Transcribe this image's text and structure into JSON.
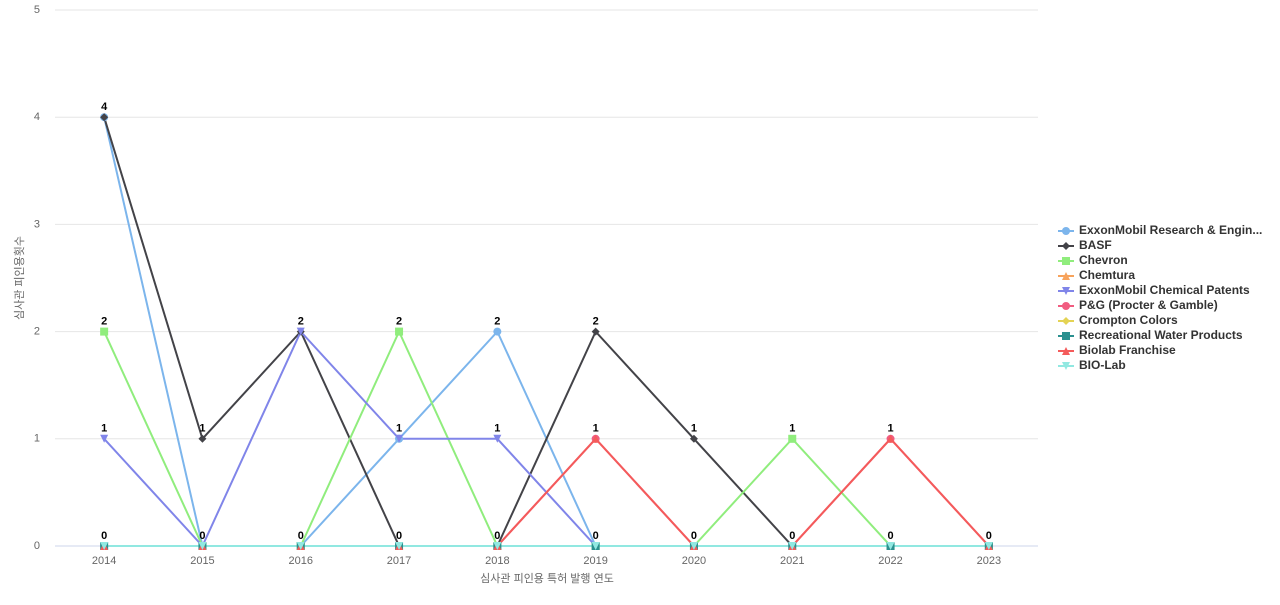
{
  "chart_data": {
    "type": "line",
    "x_label": "심사관 피인용 특허 발행 연도",
    "y_label": "심사관 피인용횟수",
    "categories": [
      "2014",
      "2015",
      "2016",
      "2017",
      "2018",
      "2019",
      "2020",
      "2021",
      "2022",
      "2023"
    ],
    "ylim": [
      0,
      5
    ],
    "yticks": [
      0,
      1,
      2,
      3,
      4,
      5
    ],
    "grid": true,
    "legend": "right",
    "series": [
      {
        "name": "ExxonMobil Research & Engin...",
        "color": "#7cb5ec",
        "marker": "circle",
        "values": [
          4,
          0,
          0,
          1,
          2,
          0,
          0,
          0,
          0,
          0
        ]
      },
      {
        "name": "BASF",
        "color": "#434348",
        "marker": "diamond",
        "values": [
          4,
          1,
          2,
          0,
          0,
          2,
          1,
          0,
          0,
          0
        ]
      },
      {
        "name": "Chevron",
        "color": "#90ed7d",
        "marker": "square",
        "values": [
          2,
          0,
          0,
          2,
          0,
          0,
          0,
          1,
          0,
          0
        ]
      },
      {
        "name": "Chemtura",
        "color": "#f7a35c",
        "marker": "triangle",
        "values": [
          0,
          0,
          0,
          0,
          0,
          0,
          0,
          0,
          0,
          0
        ]
      },
      {
        "name": "ExxonMobil Chemical Patents",
        "color": "#8085e9",
        "marker": "triangle-down",
        "values": [
          1,
          0,
          2,
          1,
          1,
          0,
          0,
          0,
          0,
          0
        ]
      },
      {
        "name": "P&G (Procter & Gamble)",
        "color": "#f15c80",
        "marker": "circle",
        "values": [
          0,
          0,
          0,
          0,
          0,
          1,
          0,
          0,
          1,
          0
        ]
      },
      {
        "name": "Crompton Colors",
        "color": "#e4d354",
        "marker": "diamond",
        "values": [
          0,
          0,
          0,
          0,
          0,
          0,
          0,
          0,
          0,
          0
        ]
      },
      {
        "name": "Recreational Water Products",
        "color": "#2b908f",
        "marker": "square",
        "values": [
          0,
          0,
          0,
          0,
          0,
          0,
          0,
          0,
          0,
          0
        ]
      },
      {
        "name": "Biolab Franchise",
        "color": "#f45b5b",
        "marker": "triangle",
        "values": [
          0,
          0,
          0,
          0,
          0,
          1,
          0,
          0,
          1,
          0
        ]
      },
      {
        "name": "BIO-Lab",
        "color": "#91e8e1",
        "marker": "triangle-down",
        "values": [
          0,
          0,
          0,
          0,
          0,
          0,
          0,
          0,
          0,
          0
        ]
      }
    ]
  }
}
